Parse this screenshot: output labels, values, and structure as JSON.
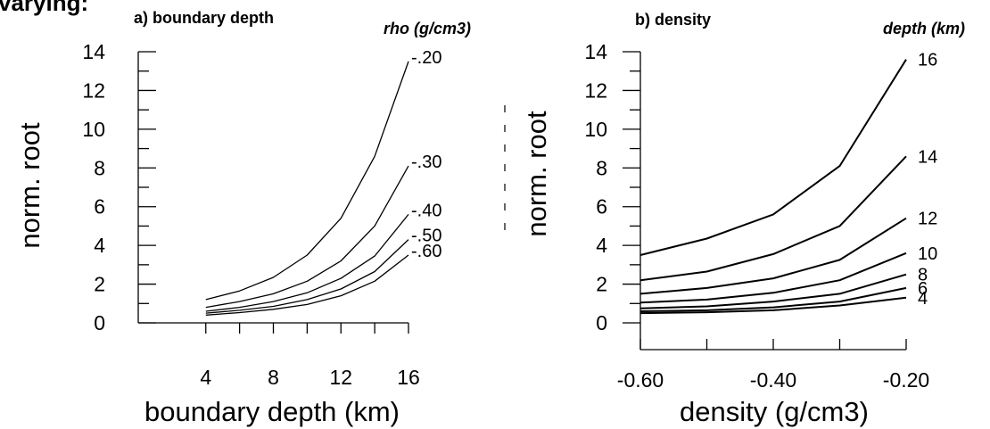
{
  "header_text": "varying:",
  "chart_data": [
    {
      "type": "line",
      "title": "a) boundary depth",
      "legend_title": "rho (g/cm3)",
      "xlabel": "boundary depth (km)",
      "ylabel": "norm. root",
      "xlim": [
        0,
        16
      ],
      "ylim": [
        0,
        14
      ],
      "x": [
        4,
        6,
        8,
        10,
        12,
        14,
        16
      ],
      "xticks": [
        4,
        8,
        12,
        16
      ],
      "yticks": [
        0,
        2,
        4,
        6,
        8,
        10,
        12,
        14
      ],
      "series": [
        {
          "name": "-.20",
          "values": [
            1.2,
            1.65,
            2.35,
            3.5,
            5.4,
            8.6,
            13.5
          ]
        },
        {
          "name": "-.30",
          "values": [
            0.8,
            1.1,
            1.5,
            2.15,
            3.2,
            5.0,
            8.1
          ]
        },
        {
          "name": "-.40",
          "values": [
            0.6,
            0.8,
            1.1,
            1.55,
            2.3,
            3.45,
            5.6
          ]
        },
        {
          "name": "-.50",
          "values": [
            0.5,
            0.65,
            0.85,
            1.2,
            1.75,
            2.65,
            4.3
          ]
        },
        {
          "name": "-.60",
          "values": [
            0.4,
            0.53,
            0.7,
            0.95,
            1.4,
            2.15,
            3.5
          ]
        }
      ]
    },
    {
      "type": "line",
      "title": "b) density",
      "legend_title": "depth (km)",
      "xlabel": "density (g/cm3)",
      "ylabel": "norm. root",
      "xlim": [
        -0.6,
        -0.2
      ],
      "ylim": [
        0,
        14
      ],
      "x": [
        -0.6,
        -0.5,
        -0.4,
        -0.3,
        -0.2
      ],
      "xticks": [
        -0.6,
        -0.4,
        -0.2
      ],
      "xtick_labels": [
        "-0.60",
        "-0.40",
        "-0.20"
      ],
      "yticks": [
        0,
        2,
        4,
        6,
        8,
        10,
        12,
        14
      ],
      "series": [
        {
          "name": "16",
          "values": [
            3.5,
            4.35,
            5.6,
            8.1,
            13.6
          ]
        },
        {
          "name": "14",
          "values": [
            2.2,
            2.65,
            3.55,
            5.0,
            8.6
          ]
        },
        {
          "name": "12",
          "values": [
            1.5,
            1.8,
            2.3,
            3.25,
            5.4
          ]
        },
        {
          "name": "10",
          "values": [
            1.05,
            1.2,
            1.55,
            2.2,
            3.6
          ]
        },
        {
          "name": "8",
          "values": [
            0.75,
            0.85,
            1.1,
            1.5,
            2.5
          ]
        },
        {
          "name": "6",
          "values": [
            0.6,
            0.65,
            0.8,
            1.1,
            1.8
          ]
        },
        {
          "name": "4",
          "values": [
            0.5,
            0.55,
            0.65,
            0.9,
            1.3
          ]
        }
      ]
    }
  ]
}
